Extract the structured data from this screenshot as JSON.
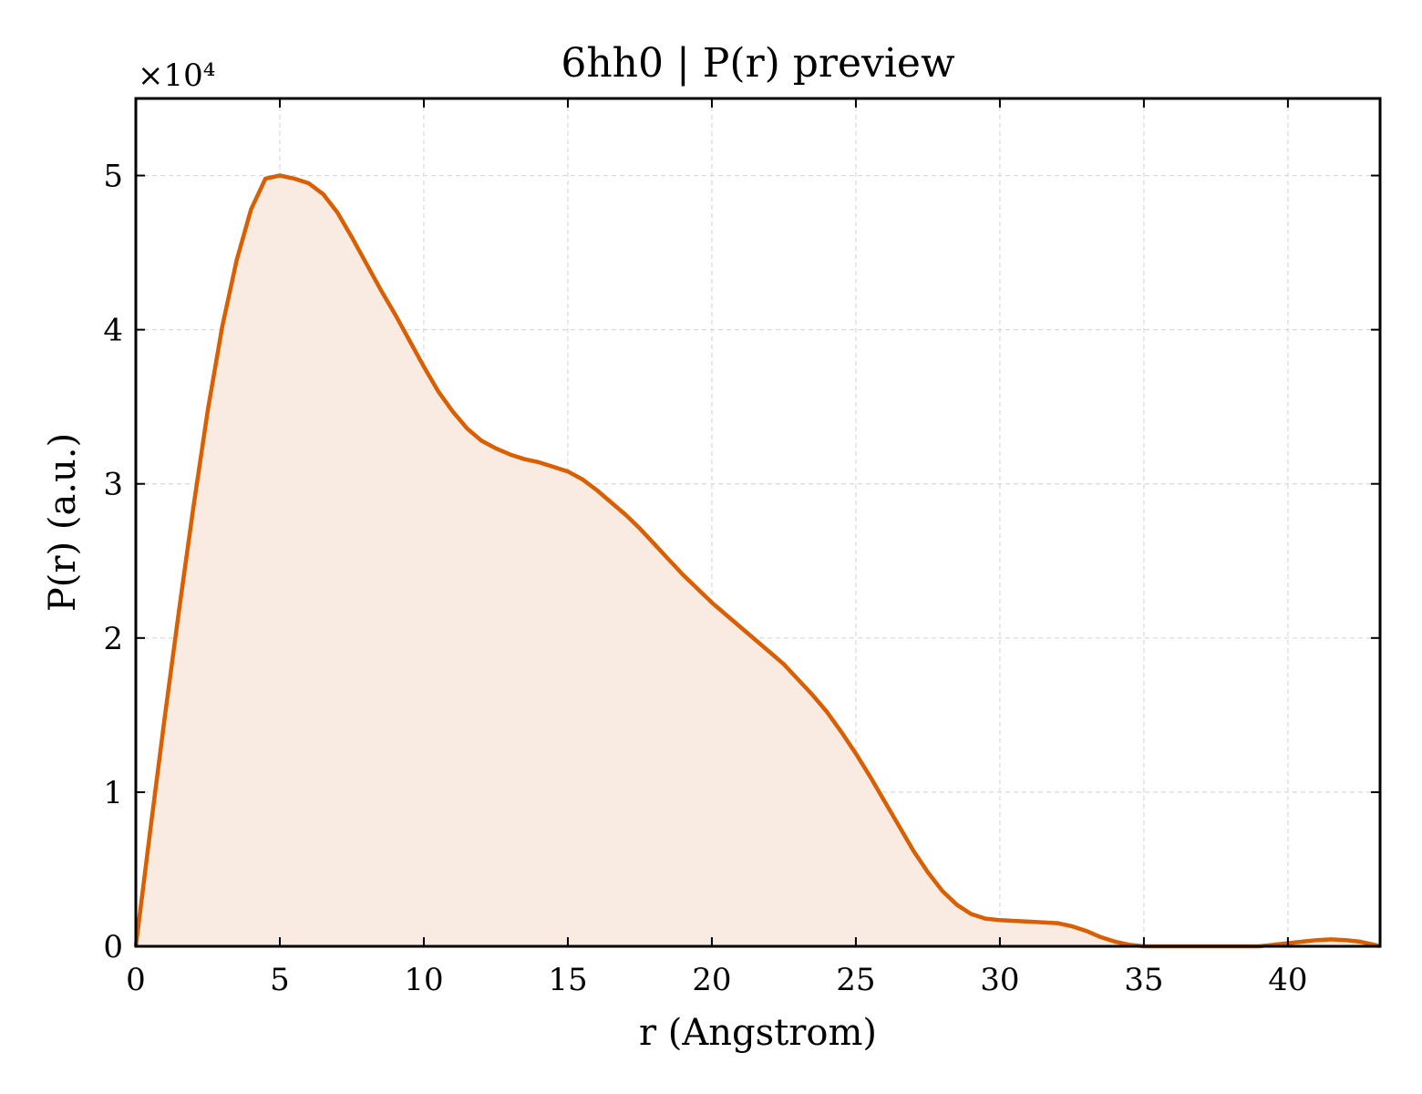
{
  "chart_data": {
    "type": "area",
    "title": "6hh0 | P(r) preview",
    "xlabel": "r (Angstrom)",
    "ylabel": "P(r) (a.u.)",
    "y_offset_label": "×10⁴",
    "xlim": [
      0,
      43.2
    ],
    "ylim": [
      0,
      5.5
    ],
    "y_scale_factor": 10000,
    "grid": true,
    "legend": "none",
    "colors": {
      "line": "#d95f02",
      "fill": "#f9ebe1",
      "grid": "#d9d9d9"
    },
    "x_ticks": [
      0,
      5,
      10,
      15,
      20,
      25,
      30,
      35,
      40
    ],
    "x_tick_labels": [
      "0",
      "5",
      "10",
      "15",
      "20",
      "25",
      "30",
      "35",
      "40"
    ],
    "y_ticks": [
      0,
      1,
      2,
      3,
      4,
      5
    ],
    "y_tick_labels": [
      "0",
      "1",
      "2",
      "3",
      "4",
      "5"
    ],
    "series": [
      {
        "x": [
          0,
          0.5,
          1,
          1.5,
          2,
          2.5,
          3,
          3.5,
          4,
          4.5,
          5,
          5.5,
          6,
          6.5,
          7,
          7.5,
          8,
          8.5,
          9,
          9.5,
          10,
          10.5,
          11,
          11.5,
          12,
          12.5,
          13,
          13.5,
          14,
          14.5,
          15,
          15.5,
          16,
          16.5,
          17,
          17.5,
          18,
          18.5,
          19,
          19.5,
          20,
          20.5,
          21,
          21.5,
          22,
          22.5,
          23,
          23.5,
          24,
          24.5,
          25,
          25.5,
          26,
          26.5,
          27,
          27.5,
          28,
          28.5,
          29,
          29.5,
          30,
          30.5,
          31,
          31.5,
          32,
          32.5,
          33,
          33.5,
          34,
          34.5,
          35,
          35.5,
          36,
          36.5,
          37,
          37.5,
          38,
          38.5,
          39,
          39.5,
          40,
          40.5,
          41,
          41.5,
          42,
          42.5,
          43,
          43.2
        ],
        "values": [
          0,
          0.75,
          1.48,
          2.18,
          2.85,
          3.48,
          4.02,
          4.45,
          4.78,
          4.98,
          5.0,
          4.98,
          4.95,
          4.88,
          4.76,
          4.6,
          4.43,
          4.26,
          4.1,
          3.93,
          3.76,
          3.6,
          3.47,
          3.36,
          3.28,
          3.23,
          3.19,
          3.16,
          3.14,
          3.11,
          3.08,
          3.03,
          2.96,
          2.88,
          2.8,
          2.71,
          2.61,
          2.51,
          2.41,
          2.32,
          2.23,
          2.15,
          2.07,
          1.99,
          1.91,
          1.83,
          1.73,
          1.63,
          1.52,
          1.39,
          1.25,
          1.1,
          0.94,
          0.78,
          0.62,
          0.48,
          0.36,
          0.27,
          0.21,
          0.18,
          0.17,
          0.165,
          0.16,
          0.155,
          0.15,
          0.13,
          0.1,
          0.06,
          0.03,
          0.01,
          0,
          0,
          0,
          0,
          0,
          0,
          0,
          0,
          0,
          0.01,
          0.02,
          0.03,
          0.04,
          0.045,
          0.04,
          0.03,
          0.01,
          0
        ]
      }
    ]
  }
}
